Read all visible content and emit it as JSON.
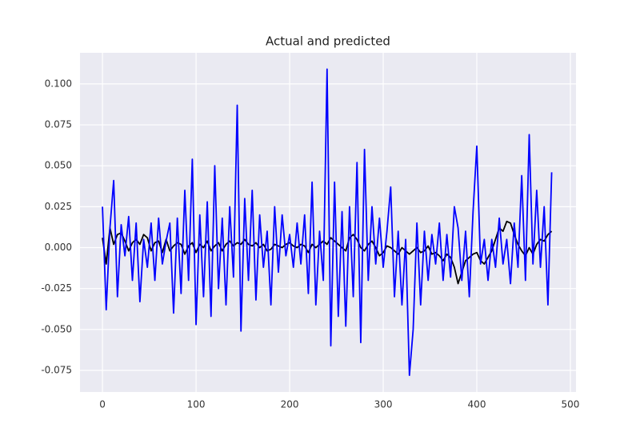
{
  "chart_data": {
    "type": "line",
    "title": "Actual and predicted",
    "x": [
      0,
      4,
      8,
      12,
      16,
      20,
      24,
      28,
      32,
      36,
      40,
      44,
      48,
      52,
      56,
      60,
      64,
      68,
      72,
      76,
      80,
      84,
      88,
      92,
      96,
      100,
      104,
      108,
      112,
      116,
      120,
      124,
      128,
      132,
      136,
      140,
      144,
      148,
      152,
      156,
      160,
      164,
      168,
      172,
      176,
      180,
      184,
      188,
      192,
      196,
      200,
      204,
      208,
      212,
      216,
      220,
      224,
      228,
      232,
      236,
      240,
      244,
      248,
      252,
      256,
      260,
      264,
      268,
      272,
      276,
      280,
      284,
      288,
      292,
      296,
      300,
      304,
      308,
      312,
      316,
      320,
      324,
      328,
      332,
      336,
      340,
      344,
      348,
      352,
      356,
      360,
      364,
      368,
      372,
      376,
      380,
      384,
      388,
      392,
      396,
      400,
      404,
      408,
      412,
      416,
      420,
      424,
      428,
      432,
      436,
      440,
      444,
      448,
      452,
      456,
      460,
      464,
      468,
      472,
      476,
      480
    ],
    "series": [
      {
        "color": "#000000",
        "values": [
          0.006,
          -0.01,
          0.012,
          0.002,
          0.008,
          0.009,
          0.004,
          -0.002,
          0.003,
          0.005,
          0.002,
          0.008,
          0.006,
          -0.002,
          0.003,
          0.004,
          -0.003,
          0.005,
          -0.002,
          0.001,
          0.003,
          0.002,
          -0.004,
          0.001,
          0.003,
          -0.003,
          0.002,
          0.0,
          0.004,
          -0.002,
          0.001,
          0.003,
          -0.002,
          0.002,
          0.004,
          0.001,
          0.003,
          0.002,
          0.005,
          0.002,
          0.001,
          0.003,
          0.0,
          0.002,
          -0.002,
          -0.001,
          0.002,
          0.001,
          0.0,
          0.002,
          0.003,
          0.001,
          0.0,
          0.002,
          0.001,
          -0.003,
          0.002,
          0.0,
          0.002,
          0.004,
          0.002,
          0.006,
          0.004,
          0.002,
          0.0,
          -0.002,
          0.006,
          0.008,
          0.005,
          0.0,
          -0.002,
          0.002,
          0.004,
          0.0,
          -0.005,
          -0.003,
          0.001,
          0.0,
          -0.002,
          -0.004,
          0.0,
          -0.002,
          -0.004,
          -0.002,
          0.0,
          -0.003,
          -0.002,
          0.001,
          -0.004,
          -0.003,
          -0.005,
          -0.008,
          -0.004,
          -0.006,
          -0.012,
          -0.022,
          -0.015,
          -0.008,
          -0.006,
          -0.004,
          -0.003,
          -0.008,
          -0.01,
          -0.006,
          -0.002,
          0.005,
          0.012,
          0.01,
          0.016,
          0.015,
          0.008,
          0.002,
          -0.002,
          -0.005,
          0.0,
          -0.004,
          0.002,
          0.005,
          0.004,
          0.008,
          0.01
        ]
      },
      {
        "color": "#0000ff",
        "values": [
          0.025,
          -0.038,
          0.012,
          0.041,
          -0.03,
          0.014,
          -0.005,
          0.019,
          -0.02,
          0.015,
          -0.033,
          0.005,
          -0.012,
          0.015,
          -0.02,
          0.018,
          -0.01,
          0.004,
          0.015,
          -0.04,
          0.018,
          -0.028,
          0.035,
          -0.02,
          0.054,
          -0.047,
          0.02,
          -0.03,
          0.028,
          -0.042,
          0.05,
          -0.025,
          0.018,
          -0.035,
          0.025,
          -0.018,
          0.087,
          -0.051,
          0.03,
          -0.02,
          0.035,
          -0.032,
          0.02,
          -0.012,
          0.01,
          -0.035,
          0.025,
          -0.015,
          0.02,
          -0.005,
          0.008,
          -0.012,
          0.015,
          -0.01,
          0.02,
          -0.028,
          0.04,
          -0.035,
          0.01,
          -0.02,
          0.109,
          -0.06,
          0.04,
          -0.042,
          0.022,
          -0.048,
          0.025,
          -0.03,
          0.052,
          -0.058,
          0.06,
          -0.02,
          0.025,
          -0.01,
          0.018,
          -0.012,
          0.01,
          0.037,
          -0.03,
          0.01,
          -0.035,
          0.005,
          -0.078,
          -0.05,
          0.015,
          -0.035,
          0.01,
          -0.02,
          0.008,
          -0.01,
          0.015,
          -0.02,
          0.008,
          -0.018,
          0.025,
          0.012,
          -0.02,
          0.01,
          -0.03,
          0.022,
          0.062,
          -0.01,
          0.005,
          -0.02,
          0.005,
          -0.012,
          0.018,
          -0.01,
          0.005,
          -0.022,
          0.015,
          -0.012,
          0.044,
          -0.02,
          0.069,
          -0.01,
          0.035,
          -0.012,
          0.025,
          -0.035,
          0.046
        ]
      }
    ],
    "xlim": [
      -24,
      506
    ],
    "xticks": [
      0,
      100,
      200,
      300,
      400,
      500
    ],
    "ylim": [
      -0.0882,
      0.119
    ],
    "yticks": [
      {
        "value": -0.075,
        "label": "-0.075"
      },
      {
        "value": -0.05,
        "label": "-0.050"
      },
      {
        "value": -0.025,
        "label": "-0.025"
      },
      {
        "value": 0,
        "label": "0.000"
      },
      {
        "value": 0.025,
        "label": "0.025"
      },
      {
        "value": 0.05,
        "label": "0.050"
      },
      {
        "value": 0.075,
        "label": "0.075"
      },
      {
        "value": 0.1,
        "label": "0.100"
      }
    ],
    "grid": true
  }
}
